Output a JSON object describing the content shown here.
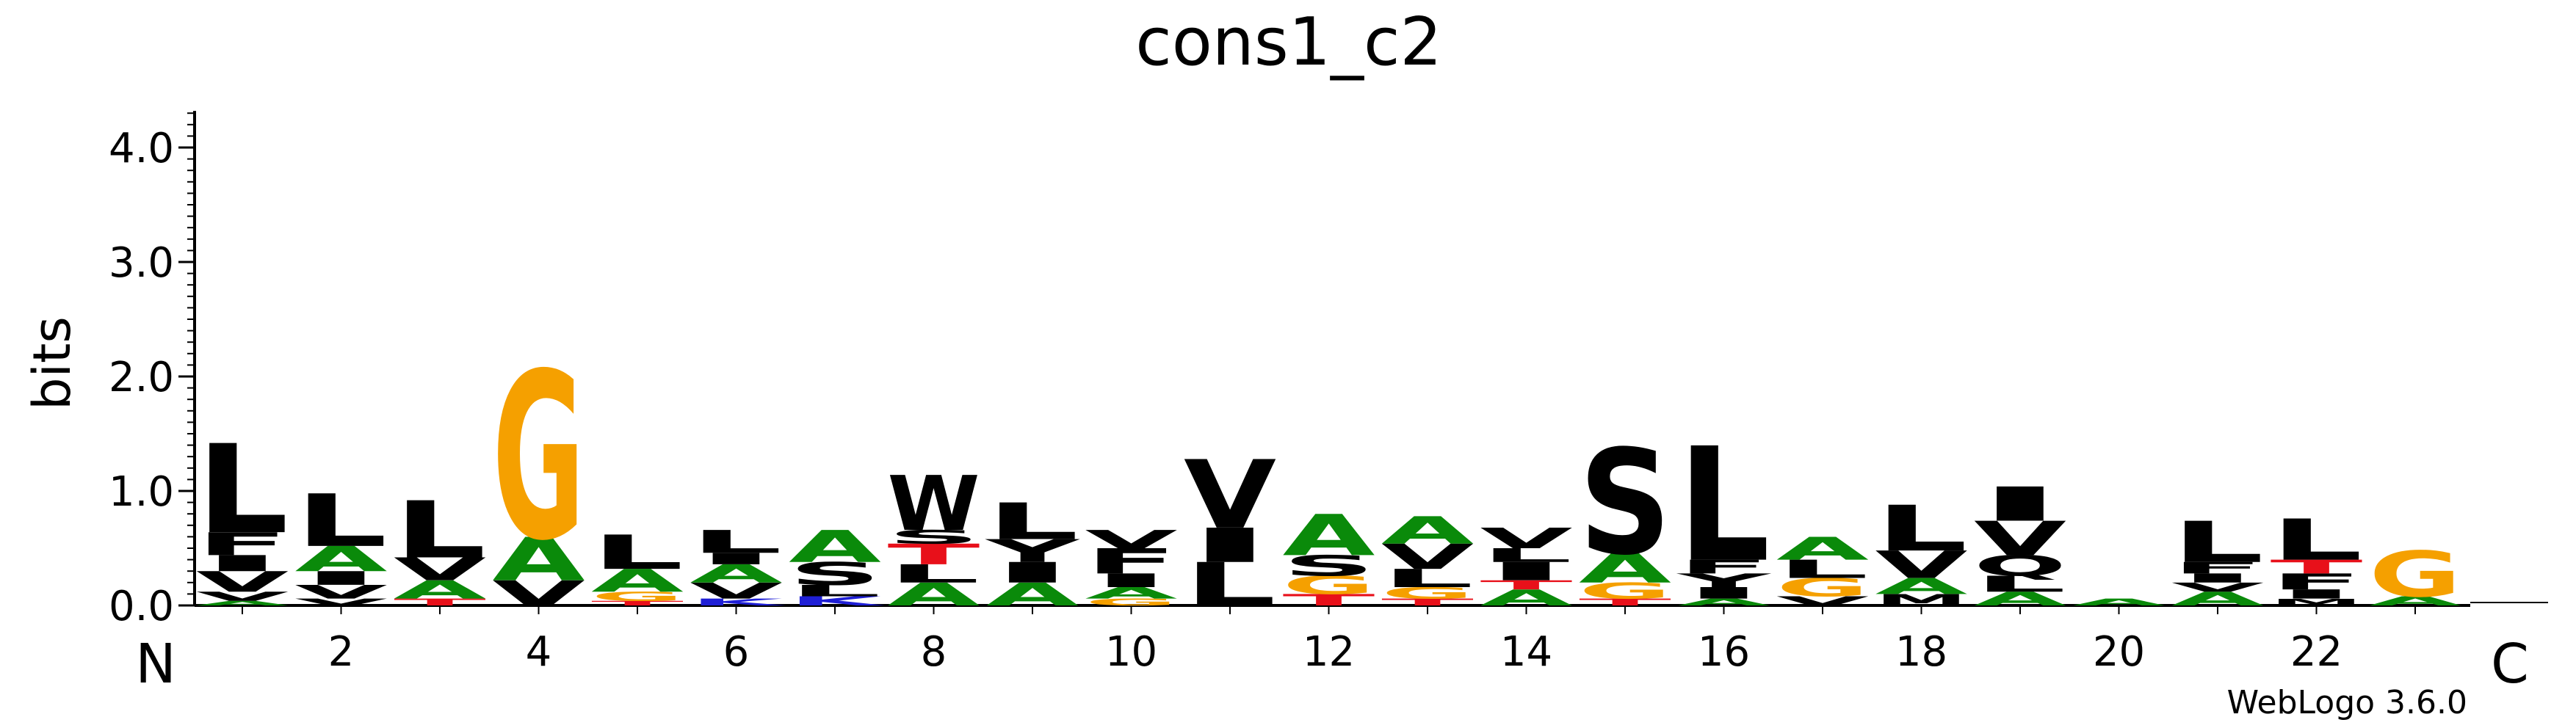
{
  "chart_data": {
    "type": "sequence-logo",
    "title": "cons1_c2",
    "ylabel": "bits",
    "ylim": [
      0,
      4.32
    ],
    "yticks": [
      "0.0",
      "1.0",
      "2.0",
      "3.0",
      "4.0"
    ],
    "ytick_values": [
      0,
      1,
      2,
      3,
      4
    ],
    "xticks": [
      "2",
      "4",
      "6",
      "8",
      "10",
      "12",
      "14",
      "16",
      "18",
      "20",
      "22"
    ],
    "xtick_positions": [
      2,
      4,
      6,
      8,
      10,
      12,
      14,
      16,
      18,
      20,
      22
    ],
    "n_label": "N",
    "c_label": "C",
    "credit": "WebLogo 3.6.0",
    "colors": {
      "A": "#0a8a0a",
      "C": "#0a8a0a",
      "T": "#e8101a",
      "G": "#f5a000",
      "S": "#000000",
      "Q": "#000000",
      "N": "#a01e96",
      "L": "#000000",
      "V": "#000000",
      "I": "#000000",
      "F": "#000000",
      "Y": "#000000",
      "W": "#000000",
      "M": "#000000",
      "P": "#000000",
      "K": "#1f1fd6",
      "R": "#1f1fd6",
      "H": "#1f1fd6",
      "D": "#e8101a",
      "E": "#e8101a"
    },
    "positions": [
      {
        "pos": 1,
        "stack": [
          [
            "A",
            0.04
          ],
          [
            "V",
            0.08
          ],
          [
            "V",
            0.18
          ],
          [
            "I",
            0.14
          ],
          [
            "F",
            0.2
          ],
          [
            "L",
            0.78
          ]
        ]
      },
      {
        "pos": 2,
        "stack": [
          [
            "V",
            0.06
          ],
          [
            "V",
            0.12
          ],
          [
            "I",
            0.12
          ],
          [
            "A",
            0.22
          ],
          [
            "L",
            0.46
          ]
        ]
      },
      {
        "pos": 3,
        "stack": [
          [
            "T",
            0.06
          ],
          [
            "A",
            0.16
          ],
          [
            "V",
            0.2
          ],
          [
            "L",
            0.5
          ]
        ]
      },
      {
        "pos": 4,
        "stack": [
          [
            "V",
            0.22
          ],
          [
            "A",
            0.38
          ],
          [
            "G",
            1.46
          ]
        ]
      },
      {
        "pos": 5,
        "stack": [
          [
            "T",
            0.04
          ],
          [
            "G",
            0.08
          ],
          [
            "A",
            0.2
          ],
          [
            "L",
            0.3
          ]
        ]
      },
      {
        "pos": 6,
        "stack": [
          [
            "K",
            0.06
          ],
          [
            "V",
            0.14
          ],
          [
            "A",
            0.16
          ],
          [
            "I",
            0.1
          ],
          [
            "L",
            0.2
          ]
        ]
      },
      {
        "pos": 7,
        "stack": [
          [
            "K",
            0.08
          ],
          [
            "L",
            0.1
          ],
          [
            "S",
            0.2
          ],
          [
            "A",
            0.28
          ]
        ]
      },
      {
        "pos": 8,
        "stack": [
          [
            "A",
            0.2
          ],
          [
            "L",
            0.16
          ],
          [
            "T",
            0.18
          ],
          [
            "S",
            0.12
          ],
          [
            "W",
            0.48
          ]
        ]
      },
      {
        "pos": 9,
        "stack": [
          [
            "A",
            0.2
          ],
          [
            "I",
            0.18
          ],
          [
            "Y",
            0.2
          ],
          [
            "L",
            0.32
          ]
        ]
      },
      {
        "pos": 10,
        "stack": [
          [
            "G",
            0.06
          ],
          [
            "A",
            0.1
          ],
          [
            "I",
            0.12
          ],
          [
            "F",
            0.22
          ],
          [
            "V",
            0.16
          ]
        ]
      },
      {
        "pos": 11,
        "stack": [
          [
            "L",
            0.38
          ],
          [
            "I",
            0.3
          ],
          [
            "V",
            0.6
          ]
        ]
      },
      {
        "pos": 12,
        "stack": [
          [
            "T",
            0.1
          ],
          [
            "G",
            0.16
          ],
          [
            "S",
            0.18
          ],
          [
            "A",
            0.36
          ]
        ]
      },
      {
        "pos": 13,
        "stack": [
          [
            "T",
            0.06
          ],
          [
            "G",
            0.1
          ],
          [
            "L",
            0.16
          ],
          [
            "V",
            0.22
          ],
          [
            "A",
            0.24
          ]
        ]
      },
      {
        "pos": 14,
        "stack": [
          [
            "A",
            0.14
          ],
          [
            "T",
            0.08
          ],
          [
            "I",
            0.16
          ],
          [
            "L",
            0.12
          ],
          [
            "V",
            0.18
          ]
        ]
      },
      {
        "pos": 15,
        "stack": [
          [
            "T",
            0.06
          ],
          [
            "G",
            0.14
          ],
          [
            "A",
            0.26
          ],
          [
            "S",
            0.92
          ]
        ]
      },
      {
        "pos": 16,
        "stack": [
          [
            "A",
            0.06
          ],
          [
            "I",
            0.1
          ],
          [
            "Y",
            0.12
          ],
          [
            "F",
            0.12
          ],
          [
            "L",
            1.0
          ]
        ]
      },
      {
        "pos": 17,
        "stack": [
          [
            "V",
            0.08
          ],
          [
            "G",
            0.16
          ],
          [
            "L",
            0.16
          ],
          [
            "A",
            0.2
          ]
        ]
      },
      {
        "pos": 18,
        "stack": [
          [
            "M",
            0.1
          ],
          [
            "A",
            0.14
          ],
          [
            "V",
            0.24
          ],
          [
            "L",
            0.4
          ]
        ]
      },
      {
        "pos": 19,
        "stack": [
          [
            "A",
            0.12
          ],
          [
            "L",
            0.14
          ],
          [
            "Q",
            0.18
          ],
          [
            "V",
            0.3
          ],
          [
            "I",
            0.3
          ]
        ]
      },
      {
        "pos": 20,
        "stack": [
          [
            "A",
            0.06
          ]
        ]
      },
      {
        "pos": 21,
        "stack": [
          [
            "A",
            0.12
          ],
          [
            "V",
            0.08
          ],
          [
            "I",
            0.08
          ],
          [
            "F",
            0.1
          ],
          [
            "L",
            0.36
          ]
        ]
      },
      {
        "pos": 22,
        "stack": [
          [
            "M",
            0.06
          ],
          [
            "I",
            0.08
          ],
          [
            "F",
            0.14
          ],
          [
            "T",
            0.12
          ],
          [
            "L",
            0.36
          ]
        ]
      },
      {
        "pos": 23,
        "stack": [
          [
            "A",
            0.08
          ],
          [
            "G",
            0.4
          ]
        ]
      }
    ]
  }
}
